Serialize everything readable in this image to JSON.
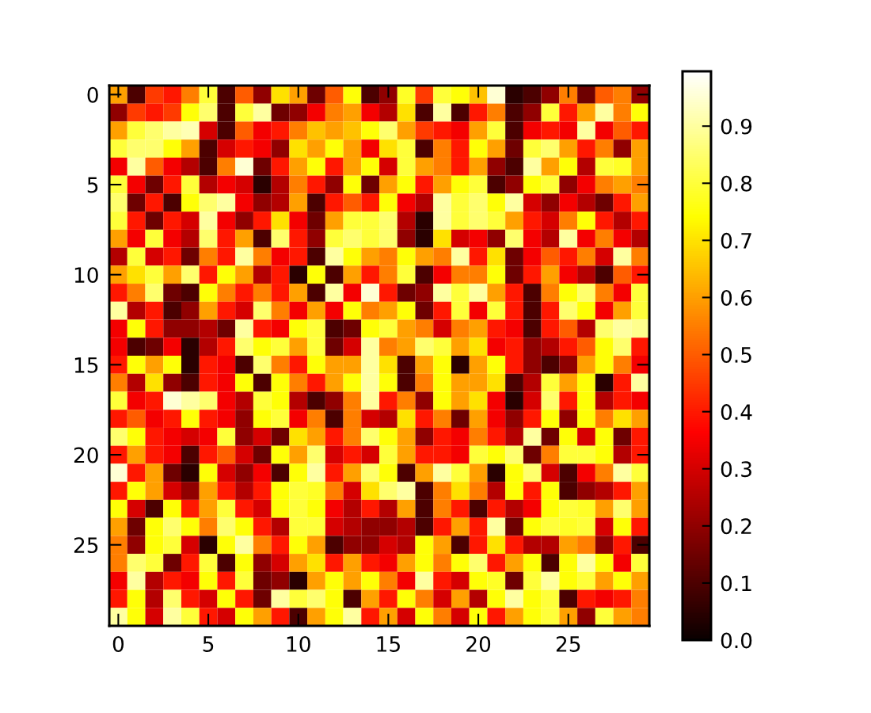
{
  "chart_data": {
    "type": "heatmap",
    "categories": [
      "0",
      null,
      null,
      null,
      null,
      "5",
      null,
      null,
      null,
      null,
      "10",
      null,
      null,
      null,
      null,
      "15",
      null,
      null,
      null,
      null,
      "20",
      null,
      null,
      null,
      null,
      "25",
      null,
      null,
      null,
      null
    ],
    "y_categories": [
      "0",
      null,
      null,
      null,
      null,
      "5",
      null,
      null,
      null,
      null,
      "10",
      null,
      null,
      null,
      null,
      "15",
      null,
      null,
      null,
      null,
      "20",
      null,
      null,
      null,
      null,
      "25",
      null,
      null,
      null,
      null
    ],
    "cells": [
      [
        0.6,
        0.1,
        0.45,
        0.4,
        0.55,
        0.8,
        0.1,
        0.5,
        0.2,
        0.7,
        0.6,
        0.15,
        0.5,
        0.75,
        0.1,
        0.2,
        0.78,
        0.45,
        0.8,
        0.75,
        0.65,
        0.95,
        0.05,
        0.1,
        0.2,
        0.55,
        0.15,
        0.5,
        0.55,
        0.2
      ],
      [
        0.2,
        0.45,
        0.4,
        0.45,
        0.75,
        0.85,
        0.1,
        0.8,
        0.9,
        0.15,
        0.2,
        0.35,
        0.55,
        0.6,
        0.35,
        0.25,
        0.7,
        0.1,
        0.9,
        0.1,
        0.4,
        0.55,
        0.1,
        0.2,
        0.8,
        0.4,
        0.6,
        0.9,
        0.55,
        0.75
      ],
      [
        0.6,
        0.8,
        0.85,
        0.9,
        0.92,
        0.3,
        0.1,
        0.5,
        0.35,
        0.4,
        0.55,
        0.65,
        0.6,
        0.65,
        0.75,
        0.85,
        0.6,
        0.45,
        0.4,
        0.35,
        0.6,
        0.8,
        0.1,
        0.35,
        0.4,
        0.35,
        0.9,
        0.35,
        0.5,
        0.4
      ],
      [
        0.8,
        0.85,
        0.85,
        0.75,
        0.6,
        0.1,
        0.3,
        0.4,
        0.35,
        0.2,
        0.7,
        0.6,
        0.75,
        0.6,
        0.35,
        0.7,
        0.8,
        0.1,
        0.55,
        0.4,
        0.75,
        0.6,
        0.15,
        0.8,
        0.85,
        0.6,
        0.4,
        0.55,
        0.2,
        0.6
      ],
      [
        0.35,
        0.9,
        0.5,
        0.35,
        0.25,
        0.1,
        0.55,
        0.95,
        0.15,
        0.4,
        0.6,
        0.75,
        0.4,
        0.6,
        0.75,
        0.3,
        0.8,
        0.6,
        0.55,
        0.4,
        0.6,
        0.2,
        0.1,
        0.9,
        0.6,
        0.75,
        0.25,
        0.8,
        0.78,
        0.6
      ],
      [
        0.8,
        0.35,
        0.15,
        0.4,
        0.8,
        0.25,
        0.35,
        0.3,
        0.05,
        0.25,
        0.55,
        0.4,
        0.2,
        0.75,
        0.15,
        0.6,
        0.75,
        0.4,
        0.6,
        0.75,
        0.8,
        0.1,
        0.2,
        0.75,
        0.8,
        0.2,
        0.35,
        0.55,
        0.6,
        0.55
      ],
      [
        0.85,
        0.15,
        0.4,
        0.1,
        0.75,
        0.85,
        0.9,
        0.35,
        0.2,
        0.25,
        0.6,
        0.1,
        0.4,
        0.5,
        0.4,
        0.75,
        0.35,
        0.25,
        0.9,
        0.8,
        0.85,
        0.75,
        0.9,
        0.3,
        0.2,
        0.35,
        0.25,
        0.15,
        0.4,
        0.6
      ],
      [
        0.8,
        0.4,
        0.15,
        0.4,
        0.3,
        0.9,
        0.35,
        0.2,
        0.4,
        0.7,
        0.35,
        0.15,
        0.6,
        0.8,
        0.8,
        0.85,
        0.25,
        0.05,
        0.9,
        0.8,
        0.85,
        0.8,
        0.6,
        0.4,
        0.3,
        0.55,
        0.75,
        0.4,
        0.25,
        0.4
      ],
      [
        0.6,
        0.35,
        0.8,
        0.35,
        0.25,
        0.85,
        0.4,
        0.6,
        0.1,
        0.85,
        0.4,
        0.2,
        0.8,
        0.85,
        0.8,
        0.85,
        0.2,
        0.05,
        0.7,
        0.3,
        0.35,
        0.2,
        0.85,
        0.35,
        0.25,
        0.9,
        0.35,
        0.55,
        0.35,
        0.25
      ],
      [
        0.25,
        0.8,
        0.3,
        0.4,
        0.15,
        0.55,
        0.4,
        0.9,
        0.55,
        0.35,
        0.4,
        0.1,
        0.9,
        0.75,
        0.6,
        0.55,
        0.75,
        0.6,
        0.55,
        0.9,
        0.4,
        0.7,
        0.15,
        0.35,
        0.5,
        0.4,
        0.55,
        0.3,
        0.9,
        0.55
      ],
      [
        0.6,
        0.7,
        0.8,
        0.6,
        0.85,
        0.4,
        0.75,
        0.6,
        0.25,
        0.4,
        0.05,
        0.75,
        0.1,
        0.6,
        0.4,
        0.55,
        0.8,
        0.1,
        0.35,
        0.55,
        0.55,
        0.75,
        0.15,
        0.4,
        0.6,
        0.35,
        0.25,
        0.1,
        0.5,
        0.4
      ],
      [
        0.4,
        0.55,
        0.85,
        0.15,
        0.1,
        0.75,
        0.55,
        0.4,
        0.55,
        0.4,
        0.6,
        0.1,
        0.9,
        0.35,
        0.95,
        0.4,
        0.15,
        0.2,
        0.9,
        0.8,
        0.9,
        0.6,
        0.4,
        0.1,
        0.55,
        0.75,
        0.85,
        0.55,
        0.35,
        0.8
      ],
      [
        0.9,
        0.25,
        0.4,
        0.1,
        0.2,
        0.6,
        0.4,
        0.3,
        0.85,
        0.55,
        0.35,
        0.6,
        0.35,
        0.75,
        0.55,
        0.6,
        0.75,
        0.15,
        0.4,
        0.8,
        0.35,
        0.8,
        0.4,
        0.1,
        0.4,
        0.85,
        0.75,
        0.35,
        0.6,
        0.8
      ],
      [
        0.35,
        0.75,
        0.4,
        0.2,
        0.2,
        0.25,
        0.15,
        0.9,
        0.4,
        0.35,
        0.75,
        0.8,
        0.1,
        0.15,
        0.75,
        0.8,
        0.6,
        0.55,
        0.3,
        0.55,
        0.6,
        0.4,
        0.35,
        0.1,
        0.4,
        0.5,
        0.25,
        0.85,
        0.9,
        0.88
      ],
      [
        0.35,
        0.1,
        0.15,
        0.35,
        0.05,
        0.25,
        0.4,
        0.85,
        0.75,
        0.8,
        0.6,
        0.8,
        0.15,
        0.3,
        0.9,
        0.55,
        0.6,
        0.85,
        0.8,
        0.6,
        0.7,
        0.35,
        0.4,
        0.2,
        0.25,
        0.4,
        0.5,
        0.75,
        0.85,
        0.4
      ],
      [
        0.4,
        0.75,
        0.6,
        0.75,
        0.05,
        0.4,
        0.35,
        0.1,
        0.85,
        0.55,
        0.4,
        0.75,
        0.6,
        0.6,
        0.9,
        0.7,
        0.1,
        0.6,
        0.75,
        0.05,
        0.6,
        0.75,
        0.4,
        0.2,
        0.1,
        0.2,
        0.6,
        0.75,
        0.55,
        0.35
      ],
      [
        0.55,
        0.25,
        0.7,
        0.2,
        0.1,
        0.4,
        0.35,
        0.75,
        0.1,
        0.75,
        0.55,
        0.4,
        0.6,
        0.75,
        0.9,
        0.75,
        0.1,
        0.55,
        0.75,
        0.6,
        0.6,
        0.7,
        0.1,
        0.25,
        0.8,
        0.6,
        0.75,
        0.05,
        0.4,
        0.9
      ],
      [
        0.8,
        0.35,
        0.4,
        0.95,
        0.9,
        0.85,
        0.35,
        0.25,
        0.8,
        0.75,
        0.25,
        0.1,
        0.2,
        0.55,
        0.9,
        0.4,
        0.55,
        0.2,
        0.75,
        0.6,
        0.7,
        0.35,
        0.05,
        0.3,
        0.85,
        0.4,
        0.75,
        0.25,
        0.4,
        0.35
      ],
      [
        0.4,
        0.5,
        0.35,
        0.4,
        0.75,
        0.4,
        0.35,
        0.2,
        0.75,
        0.8,
        0.35,
        0.55,
        0.1,
        0.55,
        0.3,
        0.25,
        0.7,
        0.4,
        0.55,
        0.15,
        0.6,
        0.35,
        0.2,
        0.4,
        0.75,
        0.2,
        0.75,
        0.55,
        0.7,
        0.6
      ],
      [
        0.85,
        0.75,
        0.4,
        0.35,
        0.3,
        0.35,
        0.8,
        0.2,
        0.3,
        0.15,
        0.7,
        0.6,
        0.4,
        0.55,
        0.85,
        0.75,
        0.6,
        0.2,
        0.4,
        0.35,
        0.55,
        0.4,
        0.25,
        0.9,
        0.15,
        0.75,
        0.3,
        0.75,
        0.15,
        0.4
      ],
      [
        0.4,
        0.6,
        0.4,
        0.35,
        0.1,
        0.4,
        0.5,
        0.3,
        0.15,
        0.75,
        0.6,
        0.85,
        0.3,
        0.4,
        0.3,
        0.8,
        0.6,
        0.4,
        0.4,
        0.35,
        0.8,
        0.75,
        0.85,
        0.15,
        0.55,
        0.8,
        0.8,
        0.75,
        0.25,
        0.4
      ],
      [
        0.95,
        0.4,
        0.6,
        0.15,
        0.05,
        0.75,
        0.3,
        0.2,
        0.35,
        0.1,
        0.75,
        0.9,
        0.4,
        0.6,
        0.85,
        0.75,
        0.1,
        0.6,
        0.9,
        0.8,
        0.6,
        0.05,
        0.75,
        0.85,
        0.3,
        0.1,
        0.35,
        0.55,
        0.9,
        0.8
      ],
      [
        0.4,
        0.75,
        0.6,
        0.3,
        0.2,
        0.6,
        0.4,
        0.25,
        0.4,
        0.75,
        0.8,
        0.78,
        0.55,
        0.3,
        0.7,
        0.85,
        0.9,
        0.1,
        0.55,
        0.7,
        0.55,
        0.25,
        0.75,
        0.4,
        0.75,
        0.1,
        0.2,
        0.25,
        0.4,
        0.6
      ],
      [
        0.75,
        0.3,
        0.1,
        0.75,
        0.4,
        0.6,
        0.8,
        0.4,
        0.3,
        0.75,
        0.8,
        0.75,
        0.35,
        0.25,
        0.4,
        0.25,
        0.6,
        0.1,
        0.55,
        0.4,
        0.1,
        0.4,
        0.25,
        0.35,
        0.75,
        0.8,
        0.78,
        0.6,
        0.85,
        0.6
      ],
      [
        0.6,
        0.15,
        0.75,
        0.85,
        0.75,
        0.55,
        0.85,
        0.75,
        0.4,
        0.25,
        0.8,
        0.8,
        0.3,
        0.25,
        0.2,
        0.2,
        0.25,
        0.1,
        0.4,
        0.6,
        0.4,
        0.9,
        0.15,
        0.75,
        0.8,
        0.78,
        0.8,
        0.3,
        0.75,
        0.4
      ],
      [
        0.55,
        0.2,
        0.75,
        0.8,
        0.3,
        0.05,
        0.75,
        0.9,
        0.55,
        0.4,
        0.75,
        0.6,
        0.1,
        0.2,
        0.2,
        0.3,
        0.25,
        0.75,
        0.6,
        0.1,
        0.4,
        0.7,
        0.4,
        0.25,
        0.25,
        0.6,
        0.55,
        0.2,
        0.4,
        0.1
      ],
      [
        0.55,
        0.85,
        0.8,
        0.15,
        0.4,
        0.8,
        0.1,
        0.75,
        0.2,
        0.3,
        0.6,
        0.7,
        0.4,
        0.6,
        0.4,
        0.35,
        0.6,
        0.75,
        0.55,
        0.75,
        0.85,
        0.4,
        0.6,
        0.75,
        0.1,
        0.75,
        0.9,
        0.75,
        0.35,
        0.8
      ],
      [
        0.35,
        0.9,
        0.25,
        0.4,
        0.35,
        0.75,
        0.4,
        0.8,
        0.15,
        0.2,
        0.05,
        0.6,
        0.75,
        0.6,
        0.75,
        0.55,
        0.35,
        0.9,
        0.4,
        0.3,
        0.75,
        0.78,
        0.15,
        0.8,
        0.9,
        0.75,
        0.8,
        0.6,
        0.75,
        0.6
      ],
      [
        0.4,
        0.75,
        0.25,
        0.85,
        0.4,
        0.3,
        0.75,
        0.4,
        0.15,
        0.9,
        0.8,
        0.85,
        0.75,
        0.1,
        0.6,
        0.4,
        0.75,
        0.55,
        0.3,
        0.6,
        0.25,
        0.75,
        0.9,
        0.75,
        0.8,
        0.1,
        0.4,
        0.35,
        0.4,
        0.55
      ],
      [
        0.9,
        0.75,
        0.3,
        0.9,
        0.8,
        0.4,
        0.3,
        0.75,
        0.6,
        0.4,
        0.1,
        0.6,
        0.75,
        0.9,
        0.4,
        0.6,
        0.3,
        0.75,
        0.55,
        0.3,
        0.75,
        0.4,
        0.6,
        0.75,
        0.8,
        0.6,
        0.2,
        0.8,
        0.6,
        0.55
      ]
    ],
    "clim": [
      0,
      0.996
    ],
    "cticks": [
      {
        "value": 0,
        "label": "0.0"
      },
      0.1,
      0.2,
      0.3,
      0.4,
      0.5,
      0.6,
      0.7,
      0.8,
      0.9
    ]
  }
}
